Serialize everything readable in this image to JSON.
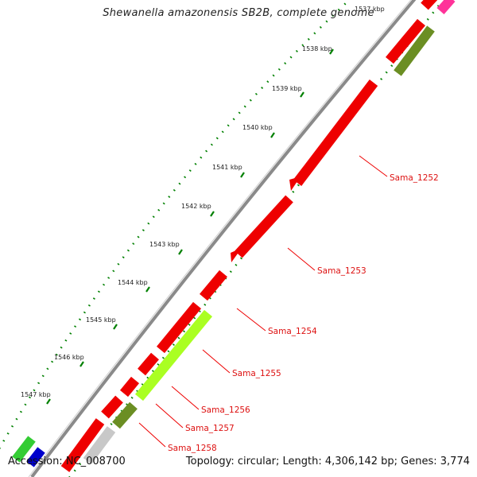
{
  "title": "Shewanella amazonensis SB2B, complete genome",
  "footer": {
    "accession": "Accession: NC_008700",
    "summary": "Topology: circular; Length: 4,306,142 bp; Genes: 3,774"
  },
  "scale_ticks": [
    "1537 kbp",
    "1538 kbp",
    "1539 kbp",
    "1540 kbp",
    "1541 kbp",
    "1542 kbp",
    "1543 kbp",
    "1544 kbp",
    "1545 kbp",
    "1546 kbp",
    "1547 kbp"
  ],
  "gene_labels": [
    "Sama_1252",
    "Sama_1253",
    "Sama_1254",
    "Sama_1255",
    "Sama_1256",
    "Sama_1257",
    "Sama_1258"
  ],
  "colors": {
    "red_gene": "#ee0000",
    "lime_gene": "#aaff22",
    "olive_gene": "#6b8e23",
    "gray_gene": "#c8c8c8",
    "pink_gene": "#ff3399",
    "green_gene": "#33cc33",
    "blue_gene": "#0000cc",
    "backbone": "#808080",
    "tick_dots": "#006600",
    "label_line": "#ee0000"
  }
}
